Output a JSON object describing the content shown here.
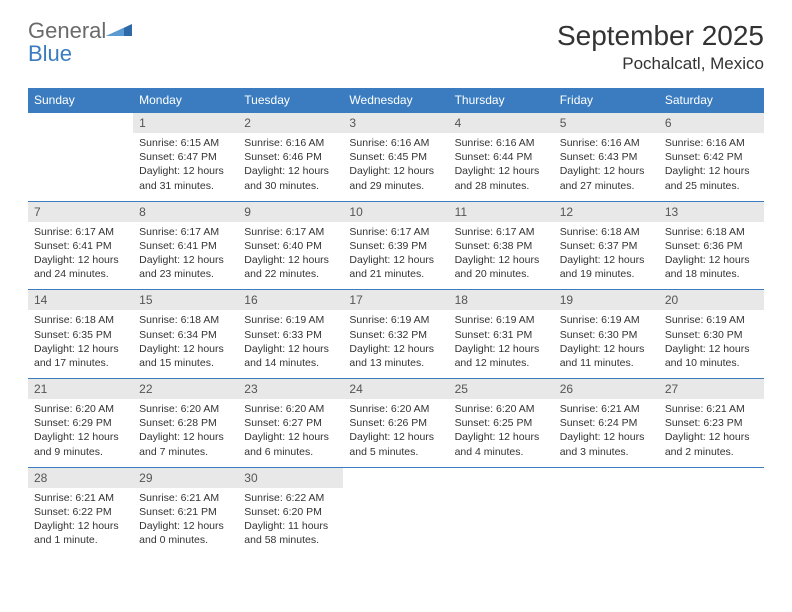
{
  "logo": {
    "textA": "General",
    "textB": "Blue"
  },
  "title": "September 2025",
  "location": "Pochalcatl, Mexico",
  "colors": {
    "header_bg": "#3a7cbf",
    "header_text": "#ffffff",
    "daynum_bg": "#e8e8e8",
    "page_bg": "#ffffff",
    "text": "#333333"
  },
  "weekdays": [
    "Sunday",
    "Monday",
    "Tuesday",
    "Wednesday",
    "Thursday",
    "Friday",
    "Saturday"
  ],
  "weeks": [
    {
      "nums": [
        "",
        "1",
        "2",
        "3",
        "4",
        "5",
        "6"
      ],
      "cells": [
        null,
        {
          "sr": "Sunrise: 6:15 AM",
          "ss": "Sunset: 6:47 PM",
          "dl": "Daylight: 12 hours and 31 minutes."
        },
        {
          "sr": "Sunrise: 6:16 AM",
          "ss": "Sunset: 6:46 PM",
          "dl": "Daylight: 12 hours and 30 minutes."
        },
        {
          "sr": "Sunrise: 6:16 AM",
          "ss": "Sunset: 6:45 PM",
          "dl": "Daylight: 12 hours and 29 minutes."
        },
        {
          "sr": "Sunrise: 6:16 AM",
          "ss": "Sunset: 6:44 PM",
          "dl": "Daylight: 12 hours and 28 minutes."
        },
        {
          "sr": "Sunrise: 6:16 AM",
          "ss": "Sunset: 6:43 PM",
          "dl": "Daylight: 12 hours and 27 minutes."
        },
        {
          "sr": "Sunrise: 6:16 AM",
          "ss": "Sunset: 6:42 PM",
          "dl": "Daylight: 12 hours and 25 minutes."
        }
      ]
    },
    {
      "nums": [
        "7",
        "8",
        "9",
        "10",
        "11",
        "12",
        "13"
      ],
      "cells": [
        {
          "sr": "Sunrise: 6:17 AM",
          "ss": "Sunset: 6:41 PM",
          "dl": "Daylight: 12 hours and 24 minutes."
        },
        {
          "sr": "Sunrise: 6:17 AM",
          "ss": "Sunset: 6:41 PM",
          "dl": "Daylight: 12 hours and 23 minutes."
        },
        {
          "sr": "Sunrise: 6:17 AM",
          "ss": "Sunset: 6:40 PM",
          "dl": "Daylight: 12 hours and 22 minutes."
        },
        {
          "sr": "Sunrise: 6:17 AM",
          "ss": "Sunset: 6:39 PM",
          "dl": "Daylight: 12 hours and 21 minutes."
        },
        {
          "sr": "Sunrise: 6:17 AM",
          "ss": "Sunset: 6:38 PM",
          "dl": "Daylight: 12 hours and 20 minutes."
        },
        {
          "sr": "Sunrise: 6:18 AM",
          "ss": "Sunset: 6:37 PM",
          "dl": "Daylight: 12 hours and 19 minutes."
        },
        {
          "sr": "Sunrise: 6:18 AM",
          "ss": "Sunset: 6:36 PM",
          "dl": "Daylight: 12 hours and 18 minutes."
        }
      ]
    },
    {
      "nums": [
        "14",
        "15",
        "16",
        "17",
        "18",
        "19",
        "20"
      ],
      "cells": [
        {
          "sr": "Sunrise: 6:18 AM",
          "ss": "Sunset: 6:35 PM",
          "dl": "Daylight: 12 hours and 17 minutes."
        },
        {
          "sr": "Sunrise: 6:18 AM",
          "ss": "Sunset: 6:34 PM",
          "dl": "Daylight: 12 hours and 15 minutes."
        },
        {
          "sr": "Sunrise: 6:19 AM",
          "ss": "Sunset: 6:33 PM",
          "dl": "Daylight: 12 hours and 14 minutes."
        },
        {
          "sr": "Sunrise: 6:19 AM",
          "ss": "Sunset: 6:32 PM",
          "dl": "Daylight: 12 hours and 13 minutes."
        },
        {
          "sr": "Sunrise: 6:19 AM",
          "ss": "Sunset: 6:31 PM",
          "dl": "Daylight: 12 hours and 12 minutes."
        },
        {
          "sr": "Sunrise: 6:19 AM",
          "ss": "Sunset: 6:30 PM",
          "dl": "Daylight: 12 hours and 11 minutes."
        },
        {
          "sr": "Sunrise: 6:19 AM",
          "ss": "Sunset: 6:30 PM",
          "dl": "Daylight: 12 hours and 10 minutes."
        }
      ]
    },
    {
      "nums": [
        "21",
        "22",
        "23",
        "24",
        "25",
        "26",
        "27"
      ],
      "cells": [
        {
          "sr": "Sunrise: 6:20 AM",
          "ss": "Sunset: 6:29 PM",
          "dl": "Daylight: 12 hours and 9 minutes."
        },
        {
          "sr": "Sunrise: 6:20 AM",
          "ss": "Sunset: 6:28 PM",
          "dl": "Daylight: 12 hours and 7 minutes."
        },
        {
          "sr": "Sunrise: 6:20 AM",
          "ss": "Sunset: 6:27 PM",
          "dl": "Daylight: 12 hours and 6 minutes."
        },
        {
          "sr": "Sunrise: 6:20 AM",
          "ss": "Sunset: 6:26 PM",
          "dl": "Daylight: 12 hours and 5 minutes."
        },
        {
          "sr": "Sunrise: 6:20 AM",
          "ss": "Sunset: 6:25 PM",
          "dl": "Daylight: 12 hours and 4 minutes."
        },
        {
          "sr": "Sunrise: 6:21 AM",
          "ss": "Sunset: 6:24 PM",
          "dl": "Daylight: 12 hours and 3 minutes."
        },
        {
          "sr": "Sunrise: 6:21 AM",
          "ss": "Sunset: 6:23 PM",
          "dl": "Daylight: 12 hours and 2 minutes."
        }
      ]
    },
    {
      "nums": [
        "28",
        "29",
        "30",
        "",
        "",
        "",
        ""
      ],
      "cells": [
        {
          "sr": "Sunrise: 6:21 AM",
          "ss": "Sunset: 6:22 PM",
          "dl": "Daylight: 12 hours and 1 minute."
        },
        {
          "sr": "Sunrise: 6:21 AM",
          "ss": "Sunset: 6:21 PM",
          "dl": "Daylight: 12 hours and 0 minutes."
        },
        {
          "sr": "Sunrise: 6:22 AM",
          "ss": "Sunset: 6:20 PM",
          "dl": "Daylight: 11 hours and 58 minutes."
        },
        null,
        null,
        null,
        null
      ]
    }
  ]
}
